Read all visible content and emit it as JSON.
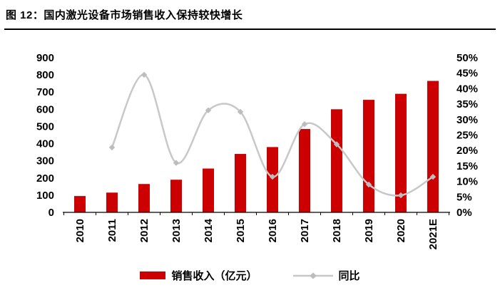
{
  "title": "图 12：国内激光设备市场销售收入保持较快增长",
  "colors": {
    "bar": "#CC0000",
    "line": "#C8C8C8",
    "marker": "#BDBDBD",
    "axis_text": "#000000"
  },
  "chart_data": {
    "type": "combo",
    "title": "国内激光设备市场销售收入保持较快增长",
    "categories": [
      "2010",
      "2011",
      "2012",
      "2013",
      "2014",
      "2015",
      "2016",
      "2017",
      "2018",
      "2019",
      "2020",
      "2021E"
    ],
    "series": [
      {
        "name": "销售收入（亿元）",
        "type": "bar",
        "axis": "left",
        "values": [
          95,
          115,
          165,
          190,
          255,
          340,
          380,
          485,
          600,
          655,
          690,
          765
        ]
      },
      {
        "name": "同比",
        "type": "line",
        "axis": "right",
        "unit": "%",
        "values": [
          null,
          21,
          44.5,
          16,
          33,
          32.5,
          11.5,
          28.5,
          22,
          9,
          5.5,
          11.5
        ]
      }
    ],
    "left_axis": {
      "min": 0,
      "max": 900,
      "step": 100,
      "ticks": [
        "0",
        "100",
        "200",
        "300",
        "400",
        "500",
        "600",
        "700",
        "800",
        "900"
      ]
    },
    "right_axis": {
      "min": 0,
      "max": 50,
      "step": 5,
      "ticks": [
        "0%",
        "5%",
        "10%",
        "15%",
        "20%",
        "25%",
        "30%",
        "35%",
        "40%",
        "45%",
        "50%"
      ]
    },
    "grid": false,
    "legend_position": "bottom"
  }
}
